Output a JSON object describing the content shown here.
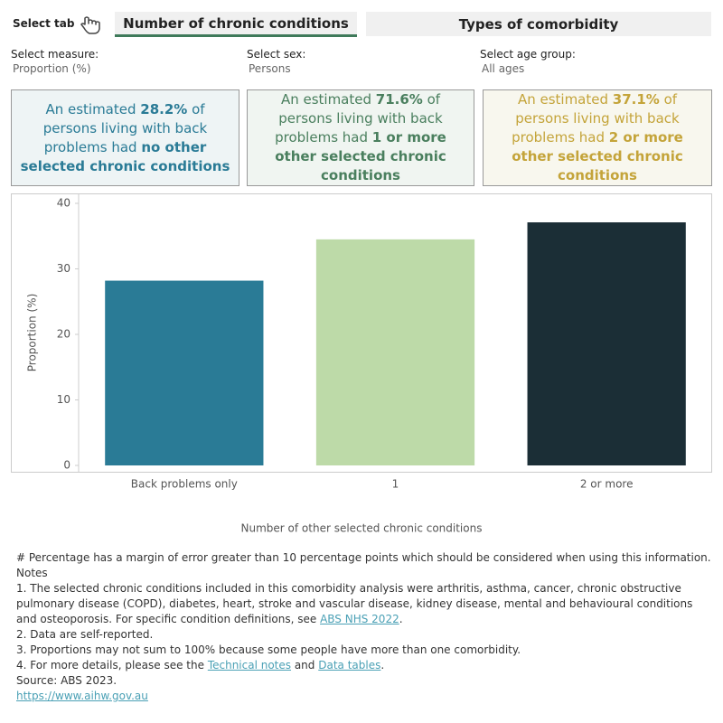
{
  "tabs": {
    "label": "Select tab",
    "items": [
      "Number of chronic conditions",
      "Types of comorbidity"
    ]
  },
  "filters": [
    {
      "label": "Select measure:",
      "value": "Proportion (%)"
    },
    {
      "label": "Select sex:",
      "value": "Persons"
    },
    {
      "label": "Select age group:",
      "value": "All ages"
    }
  ],
  "cards": [
    {
      "parts": [
        "An estimated ",
        "28.2%",
        " of persons living with back problems had ",
        "no other selected chronic conditions"
      ],
      "color": "#2a7b96",
      "background": "#eef4f5"
    },
    {
      "parts": [
        "An estimated ",
        "71.6%",
        " of persons living with back problems had ",
        "1 or more other selected chronic conditions"
      ],
      "color": "#4a7f5e",
      "background": "#f0f5f1"
    },
    {
      "parts": [
        "An estimated ",
        "37.1%",
        " of persons living with back problems had ",
        "2 or more other selected chronic conditions"
      ],
      "color": "#c4a43a",
      "background": "#f8f7ee"
    }
  ],
  "chart_data": {
    "type": "bar",
    "categories": [
      "Back problems only",
      "1",
      "2 or more"
    ],
    "values": [
      28.2,
      34.5,
      37.1
    ],
    "colors": [
      "#2a7b96",
      "#bddaa8",
      "#1b2e36"
    ],
    "xlabel": "Number of other selected chronic conditions",
    "ylabel": "Proportion (%)",
    "ylim": [
      0,
      40
    ],
    "yticks": [
      0,
      10,
      20,
      30,
      40
    ]
  },
  "notes": [
    [
      "# Percentage has a margin of error greater than 10 percentage points which should be considered when using this information."
    ],
    [
      "Notes"
    ],
    [
      "1. The selected chronic conditions included in this comorbidity analysis were arthritis, asthma, cancer, chronic obstructive pulmonary disease (COPD), diabetes, heart, stroke and vascular disease, kidney disease, mental and behavioural conditions and osteoporosis. For specific condition definitions, see ",
      {
        "link": "ABS NHS 2022"
      },
      "."
    ],
    [
      "2. Data are self-reported."
    ],
    [
      "3. Proportions may not sum to 100% because some people have more than one comorbidity."
    ],
    [
      "4. For more details, please see the ",
      {
        "link": "Technical notes"
      },
      " and ",
      {
        "link": "Data tables"
      },
      "."
    ],
    [
      "Source: ABS 2023."
    ],
    [
      {
        "link": "https://www.aihw.gov.au"
      }
    ]
  ]
}
